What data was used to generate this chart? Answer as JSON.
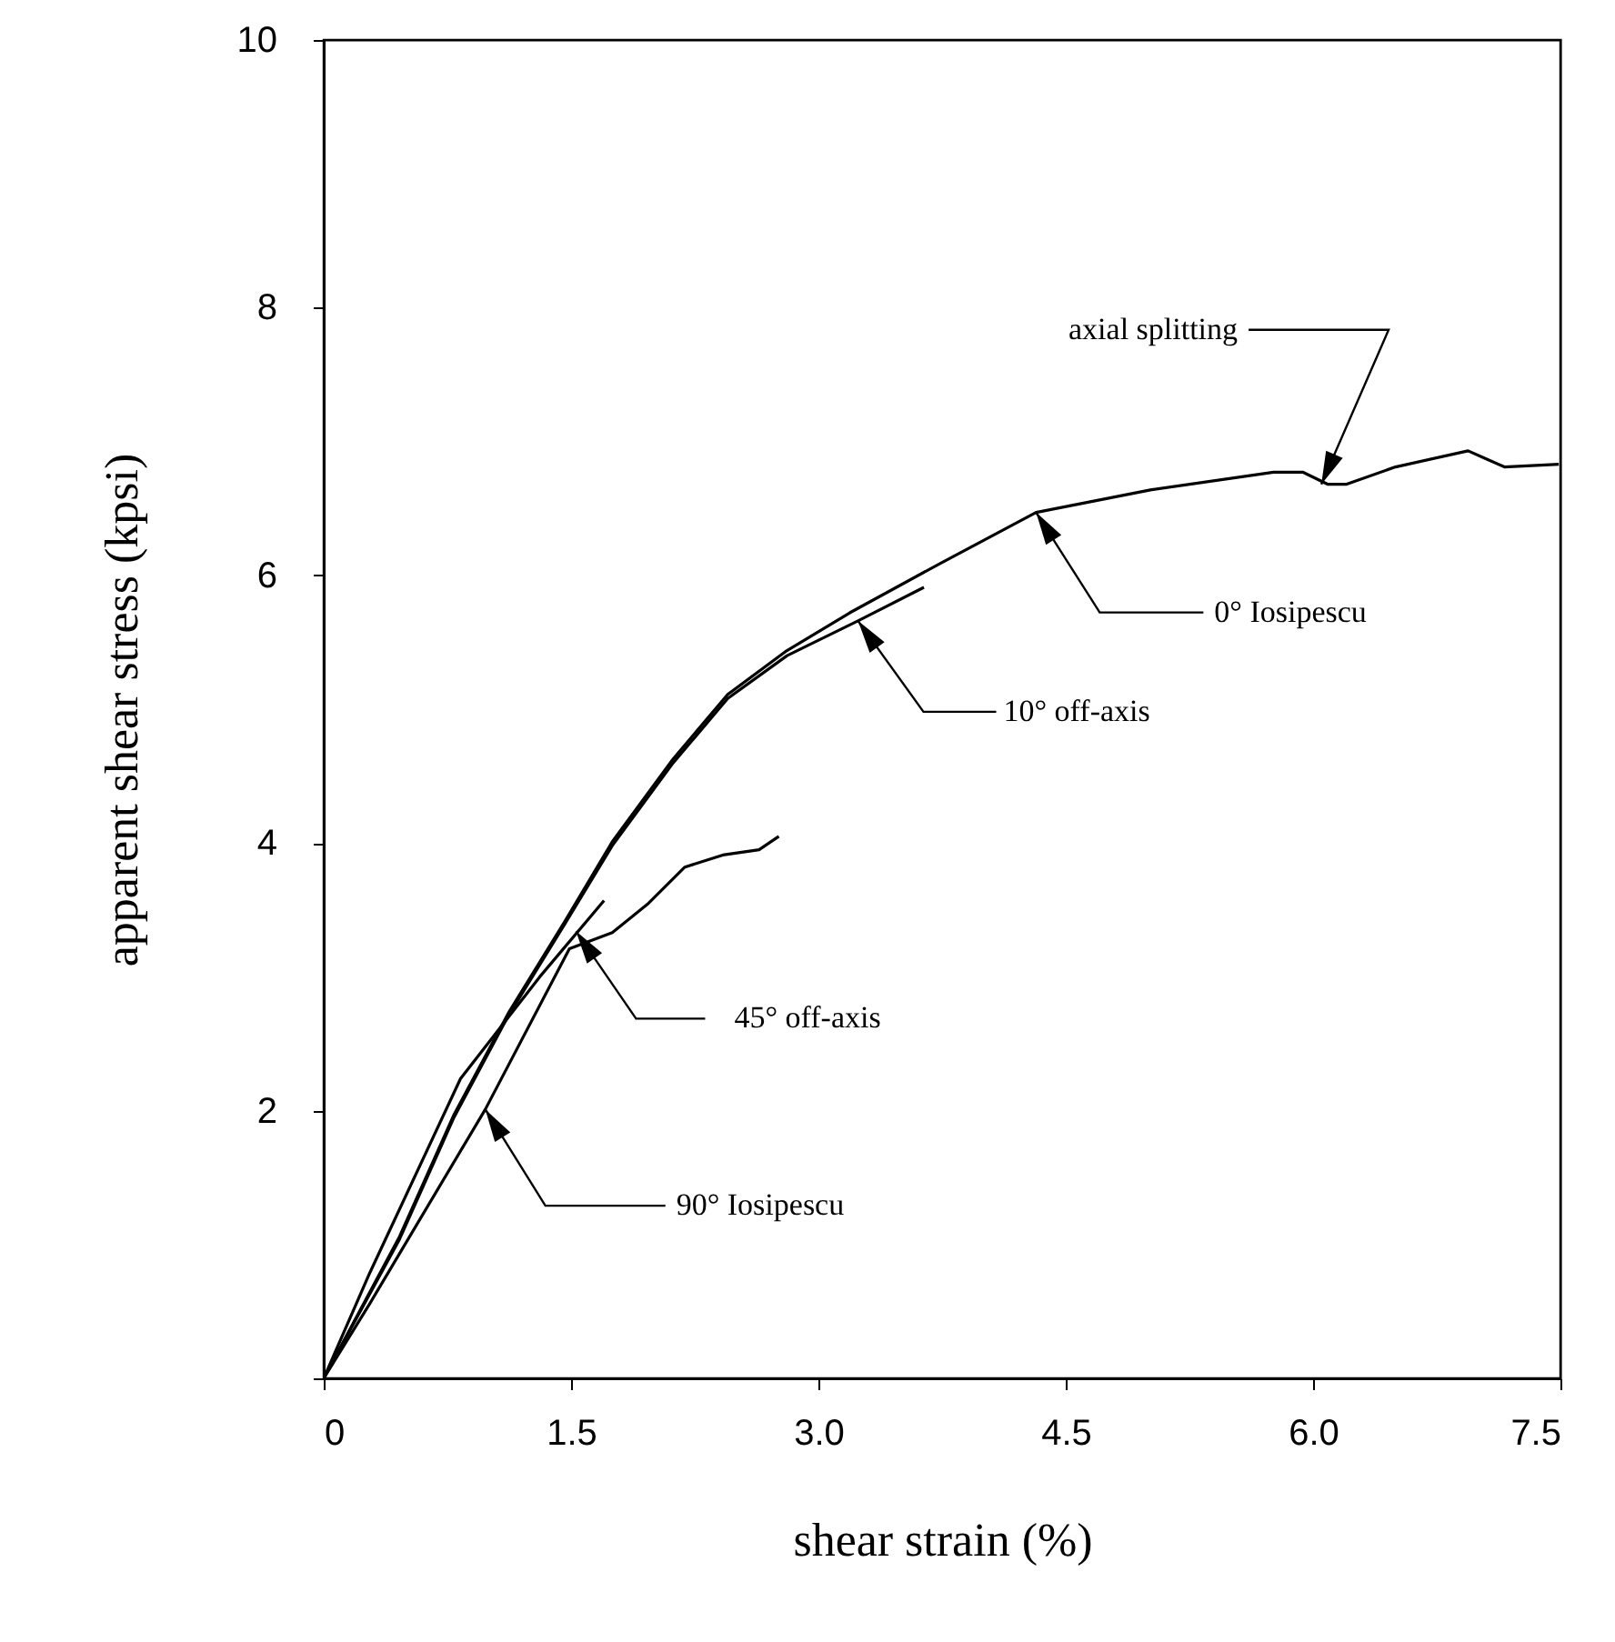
{
  "chart_data": {
    "type": "line",
    "xlabel": "shear strain (%)",
    "ylabel": "apparent shear stress (kpsi)",
    "xlim": [
      0,
      7.5
    ],
    "ylim": [
      0,
      10
    ],
    "xticks": [
      0,
      1.5,
      {
        "value": 3,
        "label": "3.0"
      },
      4.5,
      {
        "value": 6,
        "label": "6.0"
      },
      7.5
    ],
    "yticks": [
      {
        "value": 0,
        "label": null
      },
      2,
      4,
      6,
      8,
      10
    ],
    "series": [
      {
        "color": "#000000",
        "x": [
          0,
          0.46,
          0.79,
          1.12,
          1.46,
          1.75,
          2.12,
          2.45,
          2.8,
          3.19,
          3.74,
          4.32,
          5.02,
          5.76,
          5.94,
          6.09,
          6.2,
          6.5,
          6.94,
          7.05,
          7.16,
          7.49
        ],
        "values": [
          0,
          1.06,
          1.97,
          2.73,
          3.41,
          4.01,
          4.63,
          5.11,
          5.43,
          5.72,
          6.09,
          6.47,
          6.64,
          6.77,
          6.77,
          6.68,
          6.68,
          6.81,
          6.93,
          6.87,
          6.81,
          6.83
        ]
      },
      {
        "color": "#000000",
        "x": [
          0,
          0.46,
          0.79,
          1.12,
          1.46,
          1.75,
          2.12,
          2.45,
          2.81,
          3.24,
          3.64
        ],
        "values": [
          0,
          1.04,
          1.95,
          2.71,
          3.39,
          3.98,
          4.6,
          5.08,
          5.4,
          5.66,
          5.91
        ]
      },
      {
        "color": "#000000",
        "x": [
          0,
          0.28,
          0.83,
          1.31,
          1.7
        ],
        "values": [
          0,
          0.79,
          2.24,
          3.0,
          3.57
        ]
      },
      {
        "color": "#000000",
        "x": [
          0,
          0.28,
          0.98,
          1.49,
          1.75,
          1.97,
          2.19,
          2.42,
          2.64,
          2.76
        ],
        "values": [
          0,
          0.56,
          2.01,
          3.21,
          3.33,
          3.55,
          3.82,
          3.91,
          3.95,
          4.05
        ]
      }
    ],
    "annotations": [
      {
        "text": "axial splitting",
        "x": 6.05,
        "y": 6.68
      },
      {
        "text": "0° Iosipescu",
        "x": 4.32,
        "y": 6.47
      },
      {
        "text": "10° off-axis",
        "x": 3.24,
        "y": 5.66
      },
      {
        "text": "45° off-axis",
        "x": 1.53,
        "y": 3.34
      },
      {
        "text": "90° Iosipescu",
        "x": 0.98,
        "y": 2.01
      }
    ]
  }
}
